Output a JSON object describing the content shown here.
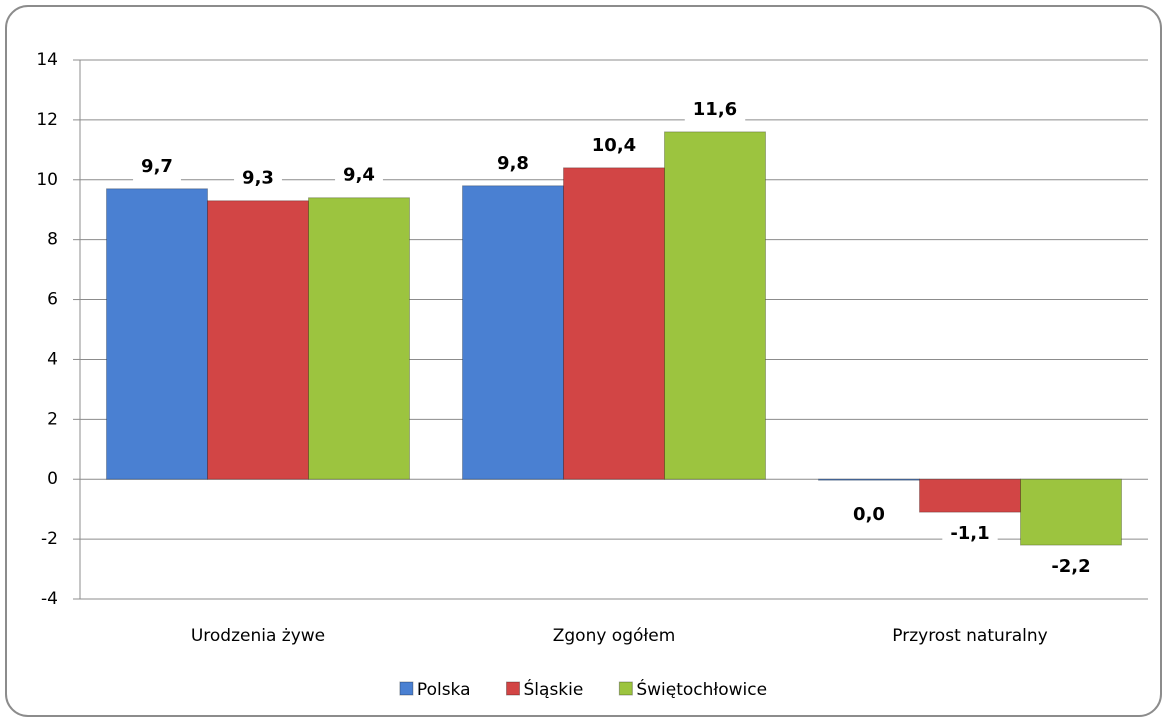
{
  "chart_data": {
    "type": "bar",
    "categories": [
      "Urodzenia żywe",
      "Zgony ogółem",
      "Przyrost naturalny"
    ],
    "series": [
      {
        "name": "Polska",
        "color": "#4a80d2",
        "values": [
          9.7,
          9.8,
          0.0
        ],
        "value_labels": [
          "9,7",
          "9,8",
          "0,0"
        ]
      },
      {
        "name": "Śląskie",
        "color": "#d24545",
        "values": [
          9.3,
          10.4,
          -1.1
        ],
        "value_labels": [
          "9,3",
          "10,4",
          "-1,1"
        ]
      },
      {
        "name": "Świętochłowice",
        "color": "#9cc43f",
        "values": [
          9.4,
          11.6,
          -2.2
        ],
        "value_labels": [
          "9,4",
          "11,6",
          "-2,2"
        ]
      }
    ],
    "ylim": [
      -4,
      14
    ],
    "yticks": [
      -4,
      -2,
      0,
      2,
      4,
      6,
      8,
      10,
      12,
      14
    ],
    "grid": true,
    "legend": "bottom"
  }
}
